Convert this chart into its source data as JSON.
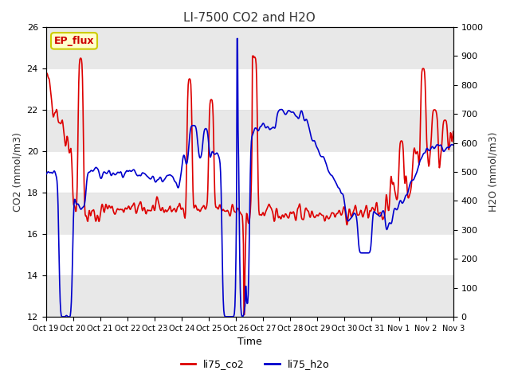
{
  "title": "LI-7500 CO2 and H2O",
  "xlabel": "Time",
  "ylabel_left": "CO2 (mmol/m3)",
  "ylabel_right": "H2O (mmol/m3)",
  "ylim_left": [
    12,
    26
  ],
  "ylim_right": [
    0,
    1000
  ],
  "yticks_left": [
    12,
    14,
    16,
    18,
    20,
    22,
    24,
    26
  ],
  "yticks_right": [
    0,
    100,
    200,
    300,
    400,
    500,
    600,
    700,
    800,
    900,
    1000
  ],
  "xtick_labels": [
    "Oct 19",
    "Oct 20",
    "Oct 21",
    "Oct 22",
    "Oct 23",
    "Oct 24",
    "Oct 25",
    "Oct 26",
    "Oct 27",
    "Oct 28",
    "Oct 29",
    "Oct 30",
    "Oct 31",
    "Nov 1",
    "Nov 2",
    "Nov 3"
  ],
  "ep_flux_label": "EP_flux",
  "ep_flux_bg": "#ffffcc",
  "ep_flux_border": "#cccc00",
  "ep_flux_text_color": "#cc0000",
  "legend_co2_label": "li75_co2",
  "legend_h2o_label": "li75_h2o",
  "co2_color": "#dd0000",
  "h2o_color": "#0000cc",
  "bg_color": "#ffffff",
  "grid_color": "#e0e0e0",
  "title_color": "#333333",
  "axis_label_color": "#333333",
  "co2_linewidth": 1.2,
  "h2o_linewidth": 1.2
}
